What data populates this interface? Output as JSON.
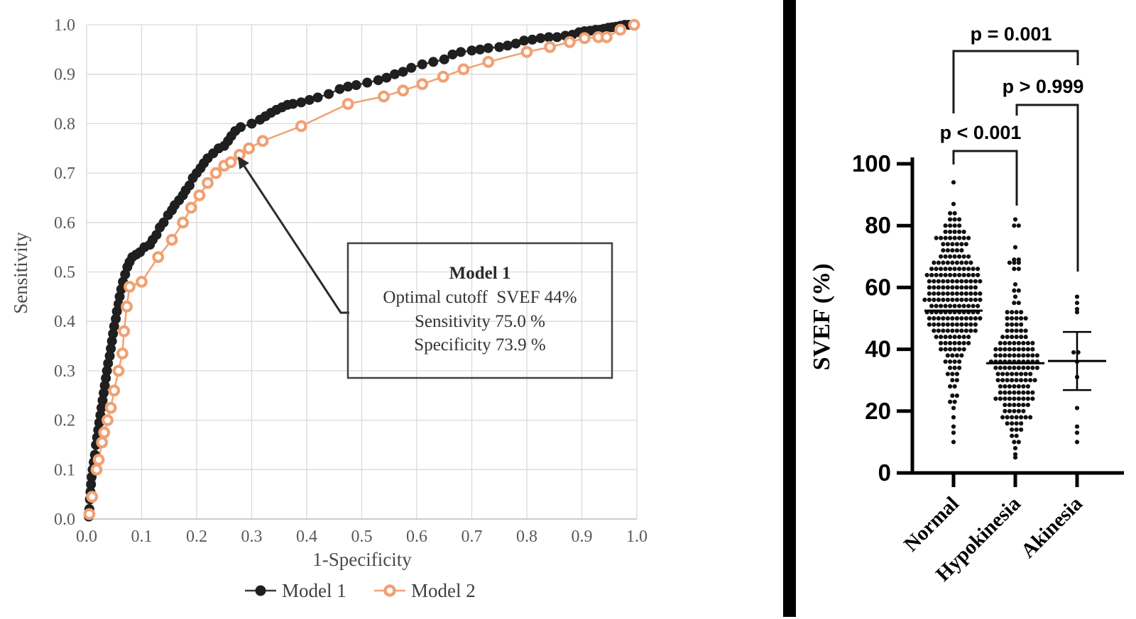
{
  "figure": {
    "background": "#ffffff",
    "divider_color": "#000000",
    "model1_color": "#1f1f1f",
    "model1_line_color": "#3b3b3b",
    "model2_color": "#f0a173",
    "grid_color": "#d9d9d9",
    "scatter_dot_color": "#111111"
  },
  "chart_data": [
    {
      "type": "line",
      "name": "roc-curves",
      "title": "",
      "xlabel": "1-Specificity",
      "ylabel": "Sensitivity",
      "xlim": [
        0,
        1
      ],
      "ylim": [
        0,
        1
      ],
      "grid": true,
      "legend_position": "bottom",
      "xticks": [
        "0.0",
        "0.1",
        "0.2",
        "0.3",
        "0.4",
        "0.5",
        "0.6",
        "0.7",
        "0.8",
        "0.9",
        "1.0"
      ],
      "yticks": [
        "0.0",
        "0.1",
        "0.2",
        "0.3",
        "0.4",
        "0.5",
        "0.6",
        "0.7",
        "0.8",
        "0.9",
        "1.0"
      ],
      "series": [
        {
          "name": "Model 1",
          "marker": "filled-circle",
          "color": "#1f1f1f",
          "line_color": "#3b3b3b",
          "points": [
            [
              0.004,
              0.005
            ],
            [
              0.005,
              0.02
            ],
            [
              0.006,
              0.04
            ],
            [
              0.007,
              0.055
            ],
            [
              0.008,
              0.07
            ],
            [
              0.009,
              0.085
            ],
            [
              0.011,
              0.1
            ],
            [
              0.013,
              0.115
            ],
            [
              0.015,
              0.13
            ],
            [
              0.017,
              0.15
            ],
            [
              0.019,
              0.165
            ],
            [
              0.021,
              0.18
            ],
            [
              0.023,
              0.195
            ],
            [
              0.025,
              0.21
            ],
            [
              0.027,
              0.225
            ],
            [
              0.029,
              0.24
            ],
            [
              0.031,
              0.255
            ],
            [
              0.033,
              0.27
            ],
            [
              0.035,
              0.285
            ],
            [
              0.037,
              0.3
            ],
            [
              0.039,
              0.315
            ],
            [
              0.042,
              0.33
            ],
            [
              0.044,
              0.345
            ],
            [
              0.046,
              0.36
            ],
            [
              0.048,
              0.375
            ],
            [
              0.05,
              0.39
            ],
            [
              0.053,
              0.405
            ],
            [
              0.055,
              0.42
            ],
            [
              0.058,
              0.435
            ],
            [
              0.06,
              0.45
            ],
            [
              0.063,
              0.465
            ],
            [
              0.066,
              0.48
            ],
            [
              0.07,
              0.495
            ],
            [
              0.074,
              0.51
            ],
            [
              0.078,
              0.52
            ],
            [
              0.083,
              0.53
            ],
            [
              0.09,
              0.535
            ],
            [
              0.097,
              0.54
            ],
            [
              0.105,
              0.55
            ],
            [
              0.115,
              0.555
            ],
            [
              0.12,
              0.565
            ],
            [
              0.127,
              0.575
            ],
            [
              0.133,
              0.59
            ],
            [
              0.14,
              0.6
            ],
            [
              0.148,
              0.615
            ],
            [
              0.155,
              0.625
            ],
            [
              0.16,
              0.635
            ],
            [
              0.168,
              0.645
            ],
            [
              0.175,
              0.655
            ],
            [
              0.18,
              0.665
            ],
            [
              0.187,
              0.675
            ],
            [
              0.193,
              0.69
            ],
            [
              0.2,
              0.7
            ],
            [
              0.207,
              0.71
            ],
            [
              0.213,
              0.72
            ],
            [
              0.22,
              0.73
            ],
            [
              0.23,
              0.74
            ],
            [
              0.24,
              0.75
            ],
            [
              0.25,
              0.755
            ],
            [
              0.257,
              0.765
            ],
            [
              0.263,
              0.775
            ],
            [
              0.27,
              0.785
            ],
            [
              0.28,
              0.793
            ],
            [
              0.3,
              0.8
            ],
            [
              0.315,
              0.808
            ],
            [
              0.325,
              0.815
            ],
            [
              0.335,
              0.822
            ],
            [
              0.345,
              0.828
            ],
            [
              0.355,
              0.833
            ],
            [
              0.365,
              0.838
            ],
            [
              0.375,
              0.84
            ],
            [
              0.39,
              0.843
            ],
            [
              0.405,
              0.848
            ],
            [
              0.42,
              0.853
            ],
            [
              0.44,
              0.86
            ],
            [
              0.46,
              0.87
            ],
            [
              0.475,
              0.875
            ],
            [
              0.49,
              0.878
            ],
            [
              0.51,
              0.883
            ],
            [
              0.53,
              0.888
            ],
            [
              0.545,
              0.893
            ],
            [
              0.56,
              0.9
            ],
            [
              0.575,
              0.905
            ],
            [
              0.59,
              0.913
            ],
            [
              0.61,
              0.92
            ],
            [
              0.63,
              0.925
            ],
            [
              0.65,
              0.93
            ],
            [
              0.665,
              0.94
            ],
            [
              0.68,
              0.945
            ],
            [
              0.7,
              0.948
            ],
            [
              0.715,
              0.95
            ],
            [
              0.73,
              0.953
            ],
            [
              0.75,
              0.955
            ],
            [
              0.765,
              0.958
            ],
            [
              0.78,
              0.962
            ],
            [
              0.795,
              0.968
            ],
            [
              0.81,
              0.97
            ],
            [
              0.825,
              0.973
            ],
            [
              0.84,
              0.975
            ],
            [
              0.855,
              0.975
            ],
            [
              0.87,
              0.978
            ],
            [
              0.883,
              0.98
            ],
            [
              0.895,
              0.985
            ],
            [
              0.905,
              0.987
            ],
            [
              0.915,
              0.988
            ],
            [
              0.925,
              0.99
            ],
            [
              0.933,
              0.99
            ],
            [
              0.94,
              0.992
            ],
            [
              0.948,
              0.994
            ],
            [
              0.955,
              0.995
            ],
            [
              0.962,
              0.996
            ],
            [
              0.97,
              0.998
            ],
            [
              0.978,
              1.0
            ],
            [
              0.985,
              1.0
            ]
          ]
        },
        {
          "name": "Model 2",
          "marker": "open-circle",
          "color": "#f0a173",
          "line_color": "#f0a173",
          "points": [
            [
              0.005,
              0.01
            ],
            [
              0.01,
              0.045
            ],
            [
              0.018,
              0.1
            ],
            [
              0.022,
              0.12
            ],
            [
              0.028,
              0.155
            ],
            [
              0.032,
              0.175
            ],
            [
              0.038,
              0.2
            ],
            [
              0.044,
              0.225
            ],
            [
              0.05,
              0.26
            ],
            [
              0.058,
              0.3
            ],
            [
              0.065,
              0.335
            ],
            [
              0.068,
              0.38
            ],
            [
              0.073,
              0.43
            ],
            [
              0.078,
              0.47
            ],
            [
              0.1,
              0.48
            ],
            [
              0.13,
              0.53
            ],
            [
              0.155,
              0.565
            ],
            [
              0.175,
              0.6
            ],
            [
              0.19,
              0.63
            ],
            [
              0.205,
              0.655
            ],
            [
              0.22,
              0.68
            ],
            [
              0.235,
              0.7
            ],
            [
              0.25,
              0.715
            ],
            [
              0.262,
              0.722
            ],
            [
              0.278,
              0.737
            ],
            [
              0.295,
              0.75
            ],
            [
              0.32,
              0.765
            ],
            [
              0.39,
              0.795
            ],
            [
              0.475,
              0.84
            ],
            [
              0.54,
              0.855
            ],
            [
              0.575,
              0.867
            ],
            [
              0.61,
              0.88
            ],
            [
              0.648,
              0.895
            ],
            [
              0.685,
              0.91
            ],
            [
              0.73,
              0.925
            ],
            [
              0.8,
              0.945
            ],
            [
              0.842,
              0.955
            ],
            [
              0.878,
              0.965
            ],
            [
              0.905,
              0.973
            ],
            [
              0.93,
              0.975
            ],
            [
              0.945,
              0.975
            ],
            [
              0.97,
              0.99
            ],
            [
              0.995,
              1.0
            ]
          ]
        }
      ],
      "annotation": {
        "title": "Model 1",
        "line1": "Optimal cutoff  SVEF 44%",
        "line2": "Sensitivity 75.0 %",
        "line3": "Specificity 73.9 %",
        "arrow_target": [
          0.27,
          0.745
        ]
      }
    },
    {
      "type": "scatter",
      "name": "svef-by-wall-motion",
      "ylabel": "SVEF (%)",
      "ylim": [
        0,
        100
      ],
      "yticks": [
        0,
        20,
        40,
        60,
        80,
        100
      ],
      "dot_color": "#111111",
      "groups": [
        {
          "label": "Normal",
          "median": 52.5,
          "rows": [
            [
              94,
              1
            ],
            [
              87,
              1
            ],
            [
              84,
              2
            ],
            [
              82,
              3
            ],
            [
              80,
              4
            ],
            [
              78,
              5
            ],
            [
              76,
              8
            ],
            [
              74,
              6
            ],
            [
              72,
              5
            ],
            [
              70,
              7
            ],
            [
              68,
              9
            ],
            [
              66,
              11
            ],
            [
              64,
              12
            ],
            [
              62,
              12
            ],
            [
              60,
              11
            ],
            [
              58,
              12
            ],
            [
              56,
              13
            ],
            [
              54,
              11
            ],
            [
              52,
              12
            ],
            [
              50,
              12
            ],
            [
              48,
              11
            ],
            [
              46,
              10
            ],
            [
              44,
              8
            ],
            [
              42,
              7
            ],
            [
              40,
              6
            ],
            [
              38,
              4
            ],
            [
              36,
              4
            ],
            [
              34,
              3
            ],
            [
              32,
              3
            ],
            [
              30,
              2
            ],
            [
              28,
              2
            ],
            [
              25,
              2
            ],
            [
              23,
              2
            ],
            [
              21,
              1
            ],
            [
              18,
              1
            ],
            [
              15,
              1
            ],
            [
              13,
              1
            ],
            [
              10,
              1
            ]
          ]
        },
        {
          "label": "Hypokinesia",
          "median": 35.5,
          "rows": [
            [
              82,
              1
            ],
            [
              80,
              2
            ],
            [
              73,
              1
            ],
            [
              69,
              2
            ],
            [
              68,
              3
            ],
            [
              66,
              2
            ],
            [
              61,
              1
            ],
            [
              59,
              2
            ],
            [
              57,
              1
            ],
            [
              55,
              2
            ],
            [
              52,
              4
            ],
            [
              50,
              5
            ],
            [
              48,
              4
            ],
            [
              46,
              5
            ],
            [
              44,
              6
            ],
            [
              42,
              8
            ],
            [
              40,
              9
            ],
            [
              38,
              10
            ],
            [
              36,
              11
            ],
            [
              34,
              10
            ],
            [
              32,
              8
            ],
            [
              30,
              9
            ],
            [
              28,
              7
            ],
            [
              26,
              8
            ],
            [
              24,
              9
            ],
            [
              22,
              6
            ],
            [
              20,
              5
            ],
            [
              18,
              7
            ],
            [
              16,
              4
            ],
            [
              14,
              3
            ],
            [
              12,
              2
            ],
            [
              10,
              2
            ],
            [
              8,
              1
            ],
            [
              6,
              1
            ],
            [
              5,
              1
            ]
          ]
        },
        {
          "label": "Akinesia",
          "mean": 36.2,
          "error_low": 26.8,
          "error_high": 45.6,
          "rows": [
            [
              57,
              1
            ],
            [
              55,
              1
            ],
            [
              53,
              1
            ],
            [
              52,
              1
            ],
            [
              39,
              2
            ],
            [
              36,
              1
            ],
            [
              31,
              1
            ],
            [
              21,
              1
            ],
            [
              15,
              1
            ],
            [
              13,
              1
            ],
            [
              10,
              1
            ]
          ]
        }
      ],
      "comparisons": [
        {
          "label": "p = 0.001",
          "between": [
            "Normal",
            "Akinesia"
          ]
        },
        {
          "label": "p > 0.999",
          "between": [
            "Hypokinesia",
            "Akinesia"
          ]
        },
        {
          "label": "p < 0.001",
          "between": [
            "Normal",
            "Hypokinesia"
          ]
        }
      ]
    }
  ]
}
